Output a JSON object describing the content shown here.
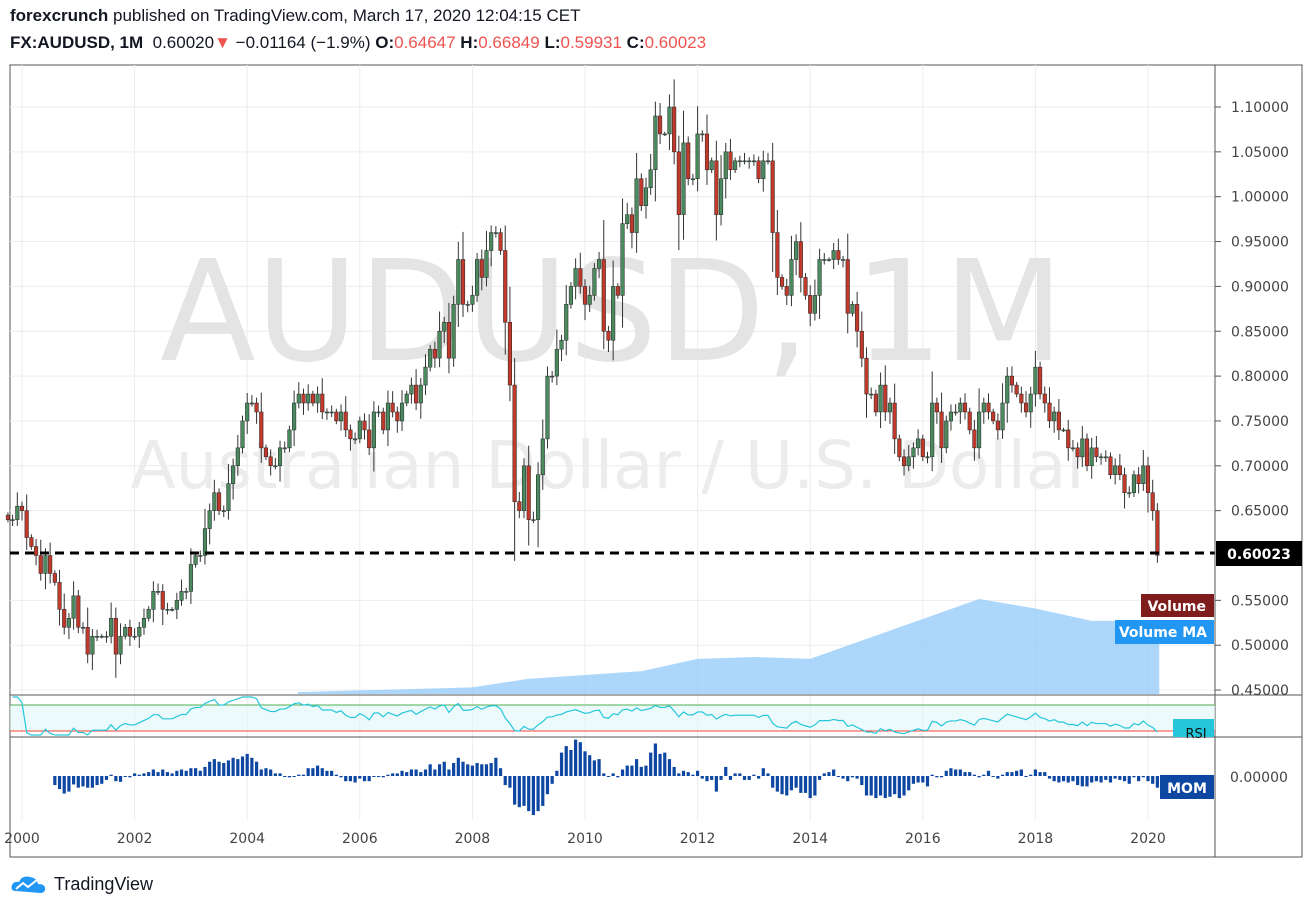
{
  "header": {
    "author": "forexcrunch",
    "published_text": "published on TradingView.com, March 17, 2020 12:04:15 CET",
    "symbol": "FX:AUDUSD, 1M",
    "last": "0.60020",
    "change": "−0.01164 (−1.9%)",
    "o_label": "O:",
    "o": "0.64647",
    "h_label": "H:",
    "h": "0.66849",
    "l_label": "L:",
    "l": "0.59931",
    "c_label": "C:",
    "c": "0.60023"
  },
  "watermark": {
    "line1": "AUDUSD, 1M",
    "line2": "Australian Dollar / U.S. Dollar"
  },
  "labels": {
    "price_tag": "0.60023",
    "volume": "Volume",
    "volume_ma": "Volume MA",
    "rsi": "RSI",
    "mom": "MOM",
    "mom_zero": "0.00000"
  },
  "logo": {
    "text": "TradingView"
  },
  "colors": {
    "up": "#4a8a5e",
    "down": "#c0392b",
    "volume_ma": "#90caf9",
    "volume_tag": "#7f1d1d",
    "volume_ma_tag": "#2196f3",
    "rsi": "#26c6da",
    "mom": "#0d47a1",
    "price_line": "#000000"
  },
  "chart_data": {
    "type": "candlestick",
    "interval": "1M",
    "start": "1999-10",
    "closes": [
      0.64,
      0.64,
      0.655,
      0.65,
      0.62,
      0.61,
      0.6,
      0.58,
      0.6,
      0.58,
      0.57,
      0.54,
      0.52,
      0.53,
      0.555,
      0.52,
      0.52,
      0.49,
      0.51,
      0.51,
      0.51,
      0.51,
      0.53,
      0.49,
      0.51,
      0.52,
      0.51,
      0.51,
      0.52,
      0.53,
      0.54,
      0.56,
      0.56,
      0.54,
      0.54,
      0.54,
      0.55,
      0.56,
      0.56,
      0.59,
      0.6,
      0.6,
      0.63,
      0.65,
      0.67,
      0.65,
      0.65,
      0.68,
      0.7,
      0.72,
      0.75,
      0.77,
      0.77,
      0.76,
      0.72,
      0.71,
      0.7,
      0.7,
      0.72,
      0.72,
      0.74,
      0.77,
      0.78,
      0.77,
      0.78,
      0.77,
      0.78,
      0.76,
      0.76,
      0.76,
      0.75,
      0.76,
      0.74,
      0.73,
      0.73,
      0.75,
      0.74,
      0.72,
      0.76,
      0.76,
      0.74,
      0.77,
      0.76,
      0.75,
      0.77,
      0.78,
      0.79,
      0.77,
      0.79,
      0.81,
      0.83,
      0.82,
      0.85,
      0.86,
      0.82,
      0.88,
      0.93,
      0.88,
      0.88,
      0.89,
      0.93,
      0.91,
      0.94,
      0.96,
      0.96,
      0.94,
      0.86,
      0.79,
      0.66,
      0.65,
      0.7,
      0.64,
      0.64,
      0.69,
      0.73,
      0.8,
      0.8,
      0.83,
      0.84,
      0.88,
      0.9,
      0.92,
      0.9,
      0.88,
      0.89,
      0.92,
      0.93,
      0.85,
      0.84,
      0.9,
      0.89,
      0.97,
      0.98,
      0.96,
      1.02,
      0.99,
      1.01,
      1.03,
      1.09,
      1.07,
      1.07,
      1.1,
      1.05,
      0.98,
      1.06,
      1.02,
      1.02,
      1.07,
      1.07,
      1.03,
      1.04,
      0.98,
      1.02,
      1.05,
      1.03,
      1.04,
      1.04,
      1.04,
      1.04,
      1.04,
      1.02,
      1.04,
      1.04,
      0.96,
      0.91,
      0.9,
      0.89,
      0.93,
      0.95,
      0.91,
      0.89,
      0.87,
      0.89,
      0.93,
      0.93,
      0.93,
      0.94,
      0.93,
      0.93,
      0.87,
      0.88,
      0.85,
      0.82,
      0.78,
      0.78,
      0.76,
      0.79,
      0.76,
      0.77,
      0.73,
      0.71,
      0.7,
      0.71,
      0.72,
      0.73,
      0.71,
      0.71,
      0.77,
      0.76,
      0.72,
      0.75,
      0.76,
      0.76,
      0.77,
      0.76,
      0.74,
      0.72,
      0.76,
      0.77,
      0.76,
      0.75,
      0.74,
      0.77,
      0.8,
      0.79,
      0.78,
      0.77,
      0.76,
      0.78,
      0.81,
      0.78,
      0.77,
      0.75,
      0.76,
      0.74,
      0.74,
      0.72,
      0.72,
      0.71,
      0.73,
      0.7,
      0.72,
      0.71,
      0.71,
      0.71,
      0.69,
      0.7,
      0.69,
      0.67,
      0.67,
      0.69,
      0.68,
      0.7,
      0.67,
      0.65,
      0.6
    ],
    "last_close": 0.60023,
    "volume_ma_relative": {
      "years": [
        2004.9,
        2008,
        2009,
        2010,
        2011,
        2012,
        2013,
        2014,
        2015,
        2016,
        2017,
        2018,
        2019,
        2020.2
      ],
      "values": [
        0.02,
        0.07,
        0.16,
        0.2,
        0.24,
        0.37,
        0.39,
        0.37,
        0.58,
        0.79,
        1.0,
        0.9,
        0.77,
        0.77
      ]
    },
    "x_ticks": [
      "2000",
      "2002",
      "2004",
      "2006",
      "2008",
      "2010",
      "2012",
      "2014",
      "2016",
      "2018",
      "2020"
    ],
    "y_ticks": [
      "1.10000",
      "1.05000",
      "1.00000",
      "0.95000",
      "0.90000",
      "0.85000",
      "0.80000",
      "0.75000",
      "0.70000",
      "0.65000",
      "0.55000",
      "0.50000",
      "0.45000"
    ],
    "ylim": [
      0.45,
      1.1
    ],
    "rsi_levels": [
      70,
      30
    ],
    "grid": true
  }
}
